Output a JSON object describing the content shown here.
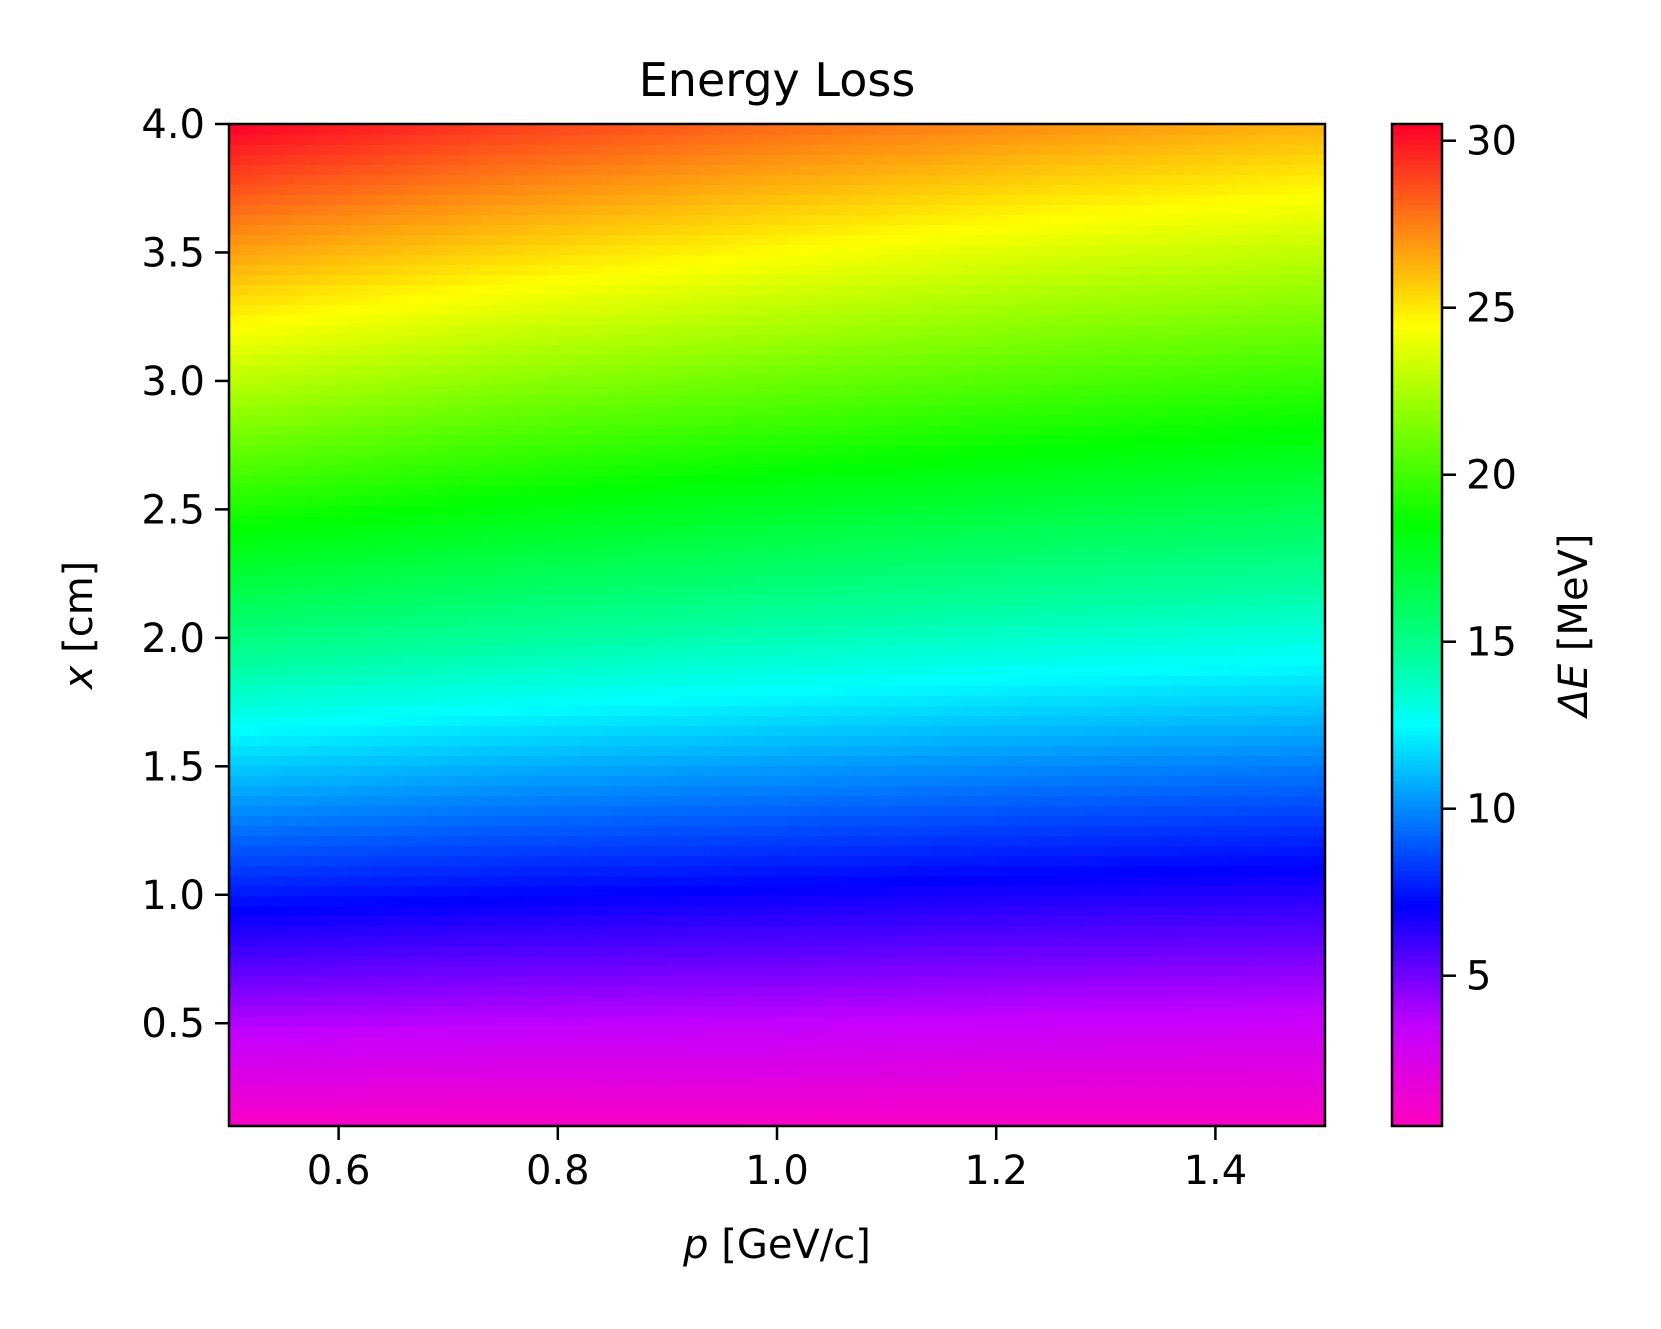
{
  "chart_data": {
    "type": "heatmap",
    "title": "Energy Loss",
    "xlabel_var": "p",
    "xlabel_unit": " [GeV/c]",
    "ylabel_var": "x",
    "ylabel_unit": " [cm]",
    "colorbar_label_var": "ΔE",
    "colorbar_label_unit": " [MeV]",
    "xlim": [
      0.5,
      1.5
    ],
    "ylim": [
      0.1,
      4.0
    ],
    "clim": [
      0.5,
      30.5
    ],
    "x_ticks": [
      0.6,
      0.8,
      1.0,
      1.2,
      1.4
    ],
    "x_tick_labels": [
      "0.6",
      "0.8",
      "1.0",
      "1.2",
      "1.4"
    ],
    "y_ticks": [
      0.5,
      1.0,
      1.5,
      2.0,
      2.5,
      3.0,
      3.5,
      4.0
    ],
    "y_tick_labels": [
      "0.5",
      "1.0",
      "1.5",
      "2.0",
      "2.5",
      "3.0",
      "3.5",
      "4.0"
    ],
    "colorbar_ticks": [
      5,
      10,
      15,
      20,
      25,
      30
    ],
    "colorbar_tick_labels": [
      "5",
      "10",
      "15",
      "20",
      "25",
      "30"
    ],
    "colormap": "gist_rainbow_r",
    "colormap_stops": [
      {
        "v": 0.0,
        "color": "#ff00bf"
      },
      {
        "v": 0.1,
        "color": "#c400ff"
      },
      {
        "v": 0.22,
        "color": "#0000ff"
      },
      {
        "v": 0.4,
        "color": "#00ffff"
      },
      {
        "v": 0.47,
        "color": "#00ff99"
      },
      {
        "v": 0.6,
        "color": "#00ff00"
      },
      {
        "v": 0.8,
        "color": "#ffff00"
      },
      {
        "v": 1.0,
        "color": "#ff0028"
      }
    ],
    "x": [
      0.5,
      0.75,
      1.0,
      1.25,
      1.5
    ],
    "y": [
      0.1,
      0.5,
      1.0,
      1.5,
      2.0,
      2.5,
      3.0,
      3.5,
      4.0
    ],
    "z": [
      [
        0.8,
        0.8,
        0.8,
        0.8,
        0.8
      ],
      [
        3.8,
        3.6,
        3.5,
        3.3,
        3.2
      ],
      [
        7.6,
        7.2,
        6.9,
        6.6,
        6.4
      ],
      [
        11.4,
        10.8,
        10.4,
        10.0,
        9.7
      ],
      [
        15.3,
        14.6,
        14.0,
        13.5,
        13.1
      ],
      [
        19.1,
        18.2,
        17.5,
        16.9,
        16.4
      ],
      [
        22.9,
        21.8,
        21.0,
        20.3,
        19.7
      ],
      [
        26.7,
        25.5,
        24.5,
        23.6,
        23.0
      ],
      [
        30.5,
        29.1,
        28.0,
        27.1,
        26.3
      ]
    ]
  }
}
